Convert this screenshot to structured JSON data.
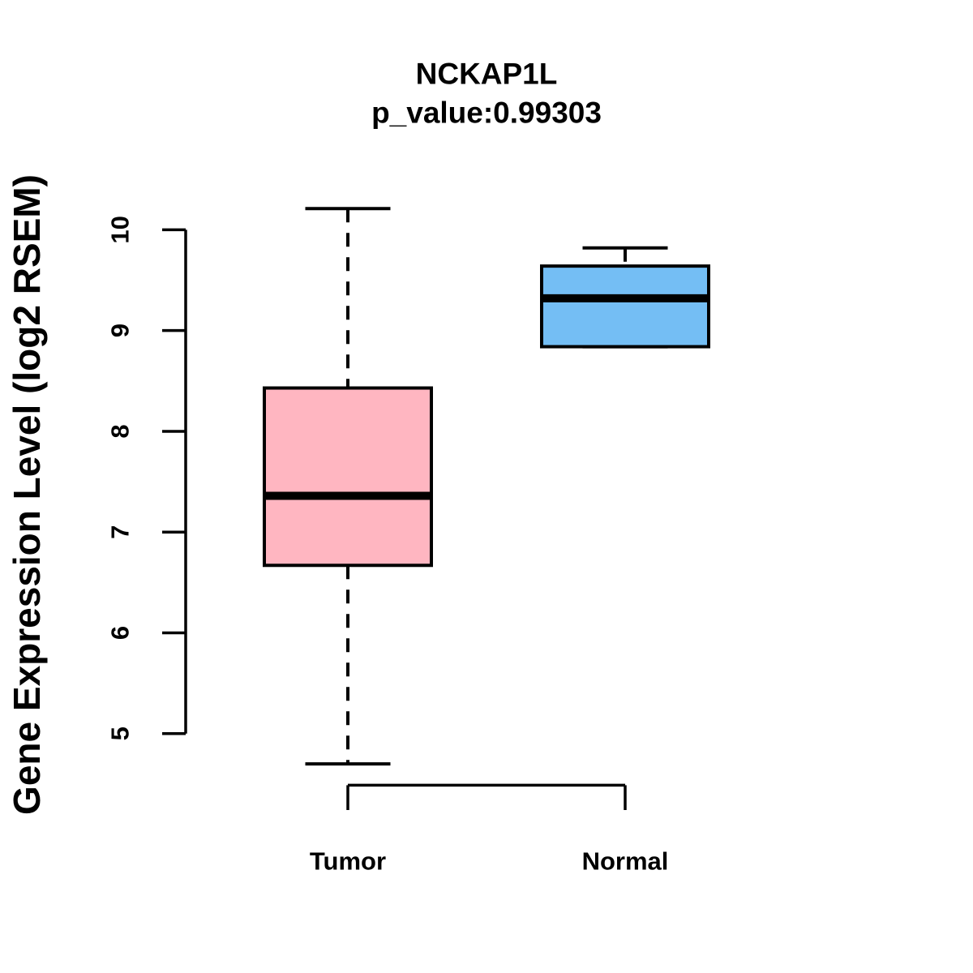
{
  "chart_data": {
    "type": "box",
    "title": "NCKAP1L",
    "subtitle": "p_value:0.99303",
    "ylabel": "Gene Expression Level (log2 RSEM)",
    "xlabel": "",
    "ylim": [
      5,
      10
    ],
    "yticks": [
      5,
      6,
      7,
      8,
      9,
      10
    ],
    "categories": [
      "Tumor",
      "Normal"
    ],
    "series": [
      {
        "name": "Tumor",
        "whisker_low": 4.7,
        "q1": 6.67,
        "median": 7.36,
        "q3": 8.43,
        "whisker_high": 10.21,
        "fill": "#FFB6C1"
      },
      {
        "name": "Normal",
        "whisker_low": 8.84,
        "q1": 8.84,
        "median": 9.32,
        "q3": 9.64,
        "whisker_high": 9.82,
        "fill": "#74BEF4"
      }
    ],
    "stroke_color": "#000000",
    "background_color": "#FFFFFF",
    "grid": false,
    "legend": "none",
    "whisker_style": "dashed"
  }
}
